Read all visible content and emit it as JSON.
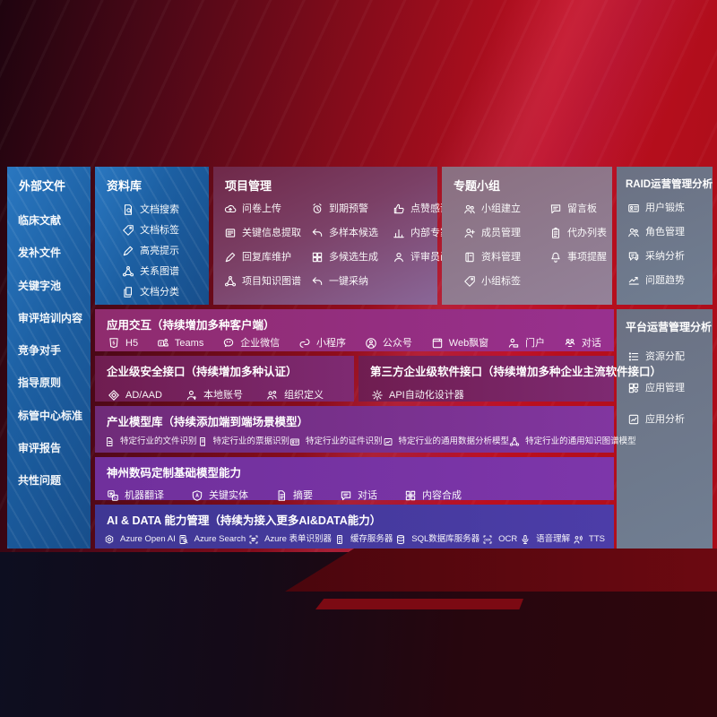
{
  "colors": {
    "accent_red": "#c1101e",
    "panel_blue": "#1f64a8",
    "panel_magenta": "#93307f",
    "panel_dark_magenta": "#76234f",
    "panel_purple": "#7a2f8a",
    "panel_indigo": "#46399c",
    "panel_slate": "#707d90",
    "panel_mauve": "#7b4066"
  },
  "left_panel": {
    "title": "外部文件",
    "items": [
      "临床文献",
      "发补文件",
      "关键字池",
      "审评培训内容",
      "竞争对手",
      "指导原则",
      "标管中心标准",
      "审评报告",
      "共性问题"
    ]
  },
  "library_panel": {
    "title": "资料库",
    "items": [
      {
        "label": "文档搜索",
        "icon": "doc-search"
      },
      {
        "label": "文档标签",
        "icon": "tag"
      },
      {
        "label": "高亮提示",
        "icon": "pen"
      },
      {
        "label": "关系图谱",
        "icon": "network"
      },
      {
        "label": "文档分类",
        "icon": "docs"
      }
    ]
  },
  "project_panel": {
    "title": "项目管理",
    "items": [
      {
        "label": "问卷上传",
        "icon": "cloud-upload"
      },
      {
        "label": "到期预警",
        "icon": "alarm"
      },
      {
        "label": "点赞感谢",
        "icon": "thumb-up"
      },
      {
        "label": "关键信息提取",
        "icon": "extract"
      },
      {
        "label": "多样本候选",
        "icon": "reply-arrow"
      },
      {
        "label": "内部专家排名",
        "icon": "rank-chart"
      },
      {
        "label": "回复库维护",
        "icon": "pen"
      },
      {
        "label": "多候选生成",
        "icon": "grid"
      },
      {
        "label": "评审员画像",
        "icon": "person"
      },
      {
        "label": "项目知识图谱",
        "icon": "network"
      },
      {
        "label": "一键采纳",
        "icon": "reply-arrow"
      }
    ]
  },
  "group_panel": {
    "title": "专题小组",
    "items": [
      {
        "label": "小组建立",
        "icon": "people"
      },
      {
        "label": "留言板",
        "icon": "bbs-board"
      },
      {
        "label": "成员管理",
        "icon": "person-add"
      },
      {
        "label": "代办列表",
        "icon": "clipboard"
      },
      {
        "label": "资料管理",
        "icon": "book"
      },
      {
        "label": "事项提醒",
        "icon": "bell"
      },
      {
        "label": "小组标签",
        "icon": "tag"
      }
    ]
  },
  "raid_panel": {
    "title": "RAID运营管理分析",
    "items": [
      {
        "label": "用户锻炼",
        "icon": "id-card"
      },
      {
        "label": "角色管理",
        "icon": "people"
      },
      {
        "label": "采纳分析",
        "icon": "chat-qa"
      },
      {
        "label": "问题趋势",
        "icon": "trend-chart"
      }
    ]
  },
  "platform_panel": {
    "title": "平台运营管理分析",
    "items": [
      {
        "label": "资源分配",
        "icon": "list"
      },
      {
        "label": "应用管理",
        "icon": "apps-grid"
      },
      {
        "label": "应用分析",
        "icon": "app-chart"
      }
    ]
  },
  "rows": {
    "interaction": {
      "title": "应用交互（持续增加多种客户端）",
      "items": [
        {
          "label": "H5",
          "icon": "html5"
        },
        {
          "label": "Teams",
          "icon": "teams"
        },
        {
          "label": "企业微信",
          "icon": "wechat"
        },
        {
          "label": "小程序",
          "icon": "miniprogram"
        },
        {
          "label": "公众号",
          "icon": "official-account"
        },
        {
          "label": "Web飘窗",
          "icon": "web-window"
        },
        {
          "label": "门户",
          "icon": "portal-person"
        },
        {
          "label": "对话",
          "icon": "dialog-people"
        }
      ]
    },
    "security": {
      "title": "企业级安全接口（持续增加多种认证）",
      "items": [
        {
          "label": "AD/AAD",
          "icon": "diamond"
        },
        {
          "label": "本地账号",
          "icon": "person-local"
        },
        {
          "label": "组织定义",
          "icon": "org-people"
        }
      ]
    },
    "third_party": {
      "title": "第三方企业级软件接口（持续增加多种企业主流软件接口）",
      "items": [
        {
          "label": "API自动化设计器",
          "icon": "gear"
        }
      ]
    },
    "industry_models": {
      "title": "产业模型库（持续添加端到端场景模型）",
      "items": [
        {
          "label": "特定行业的文件识别",
          "icon": "doc-file"
        },
        {
          "label": "特定行业的票据识别",
          "icon": "receipt"
        },
        {
          "label": "特定行业的证件识别",
          "icon": "id-card"
        },
        {
          "label": "特定行业的通用数据分析模型",
          "icon": "chart-image"
        },
        {
          "label": "特定行业的通用知识图谱模型",
          "icon": "network"
        }
      ]
    },
    "base_models": {
      "title": "神州数码定制基础模型能力",
      "items": [
        {
          "label": "机器翻译",
          "icon": "translate"
        },
        {
          "label": "关键实体",
          "icon": "shield-a"
        },
        {
          "label": "摘要",
          "icon": "summary-doc"
        },
        {
          "label": "对话",
          "icon": "chat"
        },
        {
          "label": "内容合成",
          "icon": "compose-grid"
        }
      ]
    },
    "ai_data": {
      "title": "AI & DATA 能力管理（持续为接入更多AI&DATA能力）",
      "items": [
        {
          "label": "Azure Open AI",
          "icon": "openai"
        },
        {
          "label": "Azure Search",
          "icon": "search-doc"
        },
        {
          "label": "Azure 表单识别器",
          "icon": "form-recognizer"
        },
        {
          "label": "缓存服务器",
          "icon": "cache-server"
        },
        {
          "label": "SQL数据库服务器",
          "icon": "database"
        },
        {
          "label": "OCR",
          "icon": "ocr"
        },
        {
          "label": "语音理解",
          "icon": "microphone"
        },
        {
          "label": "TTS",
          "icon": "tts-speaker"
        }
      ]
    }
  }
}
